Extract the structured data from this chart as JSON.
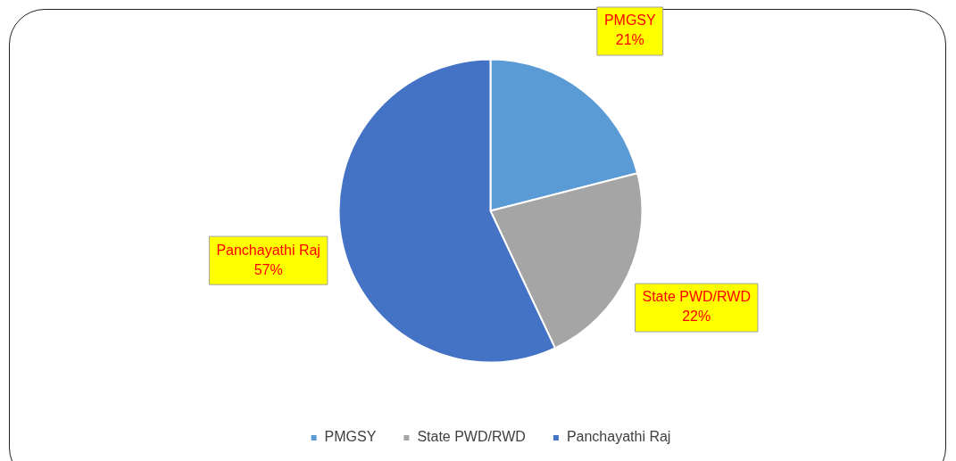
{
  "chart_data": {
    "type": "pie",
    "categories": [
      "PMGSY",
      "State PWD/RWD",
      "Panchayathi Raj"
    ],
    "values": [
      21,
      22,
      57
    ],
    "value_labels": [
      "21%",
      "22%",
      "57%"
    ],
    "colors": [
      "#5b9bd5",
      "#a5a5a5",
      "#4472c4"
    ],
    "legend": "bottom"
  }
}
